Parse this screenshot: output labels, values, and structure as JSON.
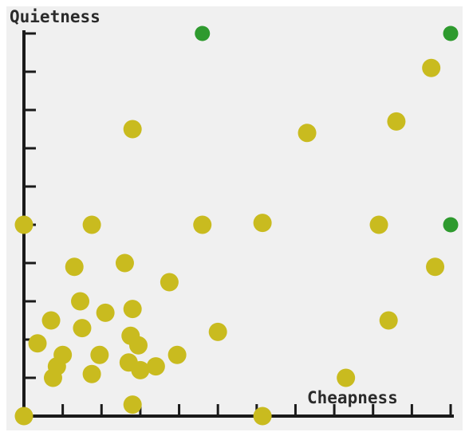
{
  "chart_data": {
    "type": "scatter",
    "title": "",
    "xlabel": "Cheapness",
    "ylabel": "Quietness",
    "xlim": [
      0,
      11
    ],
    "ylim": [
      0,
      10
    ],
    "xticks": [
      1,
      2,
      3,
      4,
      5,
      6,
      7,
      8,
      9,
      10,
      11
    ],
    "yticks": [
      1,
      2,
      3,
      4,
      5,
      6,
      7,
      8,
      9,
      10
    ],
    "grid": false,
    "legend": "none",
    "colors": {
      "background": "#f0f0f0",
      "axis": "#1a1a1a",
      "point_default": "#c9bb1f",
      "point_highlight": "#2e9a2e"
    },
    "series": [
      {
        "color": "#c9bb1f",
        "points": [
          {
            "x": 0.0,
            "y": 5.0
          },
          {
            "x": 0.35,
            "y": 1.9
          },
          {
            "x": 0.7,
            "y": 2.5
          },
          {
            "x": 0.75,
            "y": 1.0
          },
          {
            "x": 0.85,
            "y": 1.3
          },
          {
            "x": 1.0,
            "y": 1.6
          },
          {
            "x": 1.3,
            "y": 3.9
          },
          {
            "x": 1.45,
            "y": 3.0
          },
          {
            "x": 1.5,
            "y": 2.3
          },
          {
            "x": 1.75,
            "y": 1.1
          },
          {
            "x": 1.75,
            "y": 5.0
          },
          {
            "x": 1.95,
            "y": 1.6
          },
          {
            "x": 2.1,
            "y": 2.7
          },
          {
            "x": 2.6,
            "y": 4.0
          },
          {
            "x": 2.7,
            "y": 1.4
          },
          {
            "x": 2.75,
            "y": 2.1
          },
          {
            "x": 2.8,
            "y": 0.3
          },
          {
            "x": 2.8,
            "y": 2.8
          },
          {
            "x": 2.8,
            "y": 7.5
          },
          {
            "x": 2.95,
            "y": 1.85
          },
          {
            "x": 3.0,
            "y": 1.2
          },
          {
            "x": 3.4,
            "y": 1.3
          },
          {
            "x": 3.75,
            "y": 3.5
          },
          {
            "x": 3.95,
            "y": 1.6
          },
          {
            "x": 4.6,
            "y": 5.0
          },
          {
            "x": 5.0,
            "y": 2.2
          },
          {
            "x": 6.15,
            "y": 0.0
          },
          {
            "x": 6.15,
            "y": 5.05
          },
          {
            "x": 7.3,
            "y": 7.4
          },
          {
            "x": 8.3,
            "y": 1.0
          },
          {
            "x": 9.15,
            "y": 5.0
          },
          {
            "x": 9.4,
            "y": 2.5
          },
          {
            "x": 9.6,
            "y": 7.7
          },
          {
            "x": 10.5,
            "y": 9.1
          },
          {
            "x": 10.6,
            "y": 3.9
          },
          {
            "x": 0.0,
            "y": 0.0
          }
        ]
      },
      {
        "color": "#2e9a2e",
        "points": [
          {
            "x": 4.6,
            "y": 10.0
          },
          {
            "x": 11.0,
            "y": 10.0
          },
          {
            "x": 11.0,
            "y": 5.0
          }
        ]
      }
    ]
  }
}
